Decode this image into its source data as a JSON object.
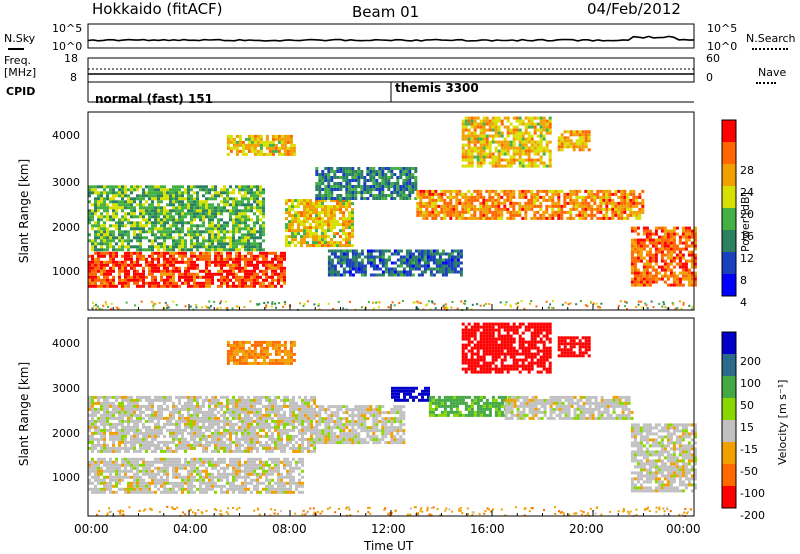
{
  "header": {
    "station": "Hokkaido (fitACF)",
    "beam": "Beam 01",
    "date": "04/Feb/2012"
  },
  "top_panels": {
    "nsky_label": "N.Sky",
    "nsearch_label": "N.Search",
    "noise_left_ticks": [
      "10^5",
      "10^0"
    ],
    "noise_right_ticks": [
      "10^5",
      "10^0"
    ],
    "freq_label": "Freq.",
    "freq_unit": "[MHz]",
    "freq_ticks": [
      "18",
      "8"
    ],
    "nave_label": "Nave",
    "nave_ticks": [
      "60",
      "0"
    ],
    "cpid_label": "CPID",
    "cpid_segments": [
      {
        "label": "normal (fast) 151",
        "start_hour": 0
      },
      {
        "label": "themis 3300",
        "start_hour": 12.0
      }
    ]
  },
  "x_axis": {
    "title": "Time UT",
    "ticks": [
      "00:00",
      "04:00",
      "08:00",
      "12:00",
      "16:00",
      "20:00",
      "00:00"
    ],
    "range_hours": [
      0,
      24
    ]
  },
  "power_panel": {
    "ylabel": "Slant Range [km]",
    "yticks": [
      "4000",
      "3000",
      "2000",
      "1000"
    ],
    "colorbar_label": "Power [dB]",
    "colorbar_ticks": [
      "28",
      "24",
      "20",
      "16",
      "12",
      "8",
      "4"
    ],
    "colors": [
      "#ff0000",
      "#ff6600",
      "#f0a000",
      "#d8e000",
      "#44b044",
      "#2a8060",
      "#1a40c0",
      "#0000ff"
    ]
  },
  "velocity_panel": {
    "ylabel": "Slant Range [km]",
    "yticks": [
      "4000",
      "3000",
      "2000",
      "1000"
    ],
    "colorbar_label": "Velocity [m s⁻¹]",
    "colorbar_ticks": [
      "200",
      "100",
      "50",
      "15",
      "-15",
      "-50",
      "-100",
      "-200"
    ],
    "colors": [
      "#0000c8",
      "#2a6a8a",
      "#44a844",
      "#88d800",
      "#c0c0c0",
      "#f0a000",
      "#ff6a00",
      "#ff0000"
    ]
  },
  "chart_data": [
    {
      "type": "heatmap",
      "title": "Power",
      "xlabel": "Time UT",
      "ylabel": "Slant Range [km]",
      "xlim_hours": [
        0,
        24
      ],
      "ylim_km": [
        180,
        4500
      ],
      "colorbar_range_db": [
        0,
        30
      ],
      "regions": [
        {
          "t0": 0.0,
          "t1": 7.8,
          "r0": 700,
          "r1": 1450,
          "value_db": 26
        },
        {
          "t0": 0.0,
          "t1": 7.0,
          "r0": 1500,
          "r1": 2900,
          "value_db": 12
        },
        {
          "t0": 5.5,
          "t1": 8.2,
          "r0": 3600,
          "r1": 4000,
          "value_db": 18
        },
        {
          "t0": 7.8,
          "t1": 10.5,
          "r0": 1600,
          "r1": 2600,
          "value_db": 18
        },
        {
          "t0": 9.0,
          "t1": 13.0,
          "r0": 2600,
          "r1": 3300,
          "value_db": 8
        },
        {
          "t0": 9.5,
          "t1": 14.8,
          "r0": 950,
          "r1": 1500,
          "value_db": 6
        },
        {
          "t0": 13.0,
          "t1": 22.0,
          "r0": 2200,
          "r1": 2800,
          "value_db": 22
        },
        {
          "t0": 14.8,
          "t1": 18.3,
          "r0": 3300,
          "r1": 4400,
          "value_db": 18
        },
        {
          "t0": 18.6,
          "t1": 19.8,
          "r0": 3700,
          "r1": 4100,
          "value_db": 20
        },
        {
          "t0": 21.5,
          "t1": 24.0,
          "r0": 700,
          "r1": 2000,
          "value_db": 24
        }
      ]
    },
    {
      "type": "heatmap",
      "title": "Velocity",
      "xlabel": "Time UT",
      "ylabel": "Slant Range [km]",
      "xlim_hours": [
        0,
        24
      ],
      "ylim_km": [
        180,
        4500
      ],
      "colorbar_range_ms": [
        -200,
        200
      ],
      "regions": [
        {
          "t0": 0.0,
          "t1": 8.5,
          "r0": 700,
          "r1": 1450,
          "value_ms": 0
        },
        {
          "t0": 0.0,
          "t1": 9.0,
          "r0": 1600,
          "r1": 2800,
          "value_ms": 0
        },
        {
          "t0": 5.5,
          "t1": 8.2,
          "r0": 3500,
          "r1": 4000,
          "value_ms": -50
        },
        {
          "t0": 9.0,
          "t1": 12.5,
          "r0": 1800,
          "r1": 2600,
          "value_ms": 0
        },
        {
          "t0": 12.0,
          "t1": 13.5,
          "r0": 2700,
          "r1": 3000,
          "value_ms": 200
        },
        {
          "t0": 13.5,
          "t1": 16.5,
          "r0": 2400,
          "r1": 2800,
          "value_ms": 40
        },
        {
          "t0": 16.5,
          "t1": 21.5,
          "r0": 2300,
          "r1": 2800,
          "value_ms": 0
        },
        {
          "t0": 14.8,
          "t1": 18.3,
          "r0": 3300,
          "r1": 4400,
          "value_ms": -200
        },
        {
          "t0": 18.6,
          "t1": 19.8,
          "r0": 3700,
          "r1": 4100,
          "value_ms": -200
        },
        {
          "t0": 21.5,
          "t1": 24.0,
          "r0": 700,
          "r1": 2200,
          "value_ms": 0
        }
      ]
    }
  ]
}
